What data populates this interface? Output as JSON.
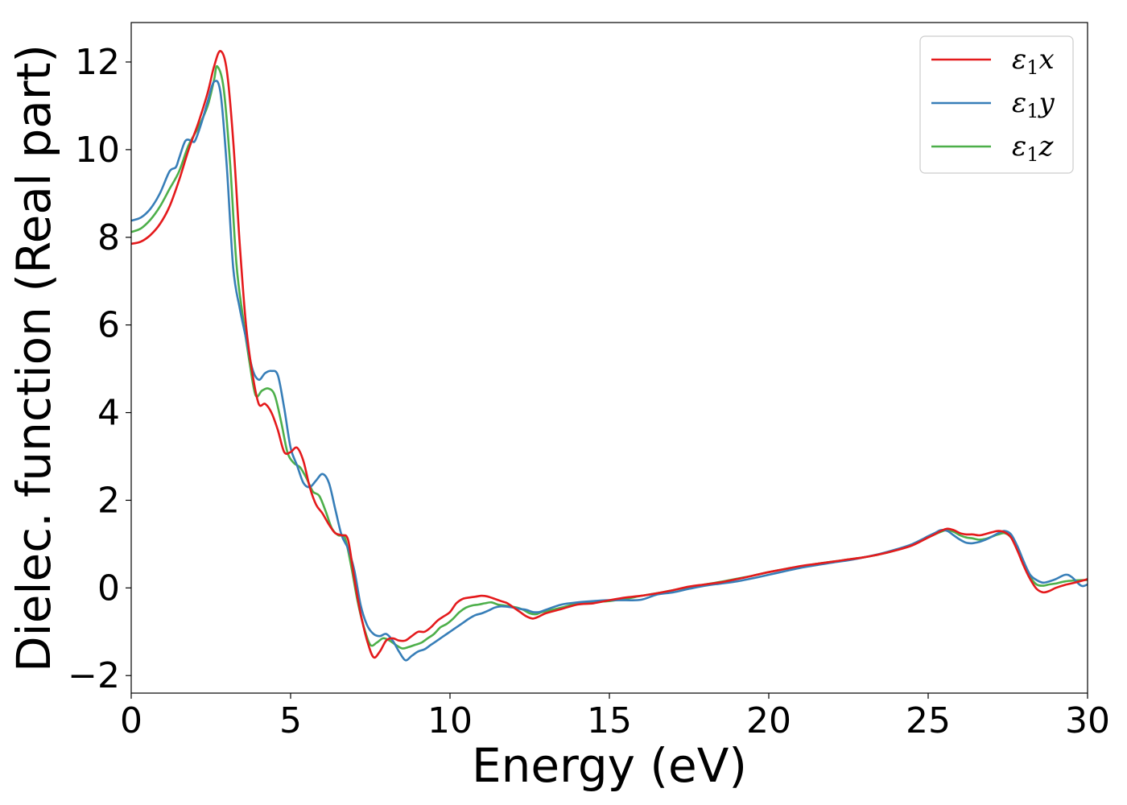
{
  "chart_data": {
    "type": "line",
    "xlabel": "Energy (eV)",
    "ylabel": "Dielec. function (Real part)",
    "xlim": [
      0,
      30
    ],
    "ylim": [
      -2.4,
      12.9
    ],
    "xticks": [
      0,
      5,
      10,
      15,
      20,
      25,
      30
    ],
    "yticks": [
      -2,
      0,
      2,
      4,
      6,
      8,
      10,
      12
    ],
    "grid": false,
    "legend_position": "top-right",
    "series": [
      {
        "name": "ε1x",
        "symbol": "ε",
        "sub": "1",
        "axis": "x",
        "color": "#e41a1c",
        "x": [
          0,
          0.3,
          0.6,
          0.9,
          1.2,
          1.5,
          1.8,
          2.1,
          2.4,
          2.6,
          2.8,
          3.0,
          3.2,
          3.4,
          3.6,
          3.8,
          4.0,
          4.2,
          4.4,
          4.6,
          4.8,
          5.0,
          5.2,
          5.4,
          5.6,
          5.8,
          6.0,
          6.2,
          6.4,
          6.6,
          6.8,
          7.0,
          7.2,
          7.4,
          7.6,
          7.8,
          8.0,
          8.2,
          8.4,
          8.6,
          8.8,
          9.0,
          9.2,
          9.4,
          9.6,
          9.8,
          10.0,
          10.2,
          10.4,
          10.6,
          10.8,
          11.0,
          11.2,
          11.4,
          11.6,
          11.8,
          12.0,
          12.2,
          12.4,
          12.6,
          12.8,
          13.0,
          13.5,
          14.0,
          14.5,
          15.0,
          15.5,
          16.0,
          16.5,
          17.0,
          17.5,
          18.0,
          18.5,
          19.0,
          19.5,
          20.0,
          20.5,
          21.0,
          21.5,
          22.0,
          22.5,
          23.0,
          23.5,
          24.0,
          24.5,
          25.0,
          25.2,
          25.4,
          25.6,
          25.8,
          26.0,
          26.2,
          26.4,
          26.6,
          26.8,
          27.0,
          27.2,
          27.4,
          27.6,
          27.8,
          28.0,
          28.2,
          28.4,
          28.6,
          28.8,
          29.0,
          29.3,
          29.6,
          30.0
        ],
        "y": [
          7.85,
          7.9,
          8.05,
          8.3,
          8.7,
          9.3,
          10.0,
          10.6,
          11.3,
          11.9,
          12.25,
          11.8,
          10.2,
          7.9,
          6.0,
          4.9,
          4.2,
          4.2,
          4.0,
          3.6,
          3.1,
          3.1,
          3.2,
          2.9,
          2.3,
          1.9,
          1.7,
          1.45,
          1.25,
          1.2,
          1.1,
          0.2,
          -0.6,
          -1.2,
          -1.58,
          -1.45,
          -1.2,
          -1.15,
          -1.2,
          -1.2,
          -1.1,
          -1.0,
          -1.0,
          -0.9,
          -0.75,
          -0.65,
          -0.55,
          -0.35,
          -0.25,
          -0.22,
          -0.2,
          -0.18,
          -0.2,
          -0.25,
          -0.3,
          -0.35,
          -0.45,
          -0.55,
          -0.65,
          -0.7,
          -0.65,
          -0.58,
          -0.48,
          -0.38,
          -0.35,
          -0.28,
          -0.22,
          -0.18,
          -0.12,
          -0.05,
          0.03,
          0.08,
          0.13,
          0.2,
          0.28,
          0.36,
          0.43,
          0.5,
          0.55,
          0.6,
          0.65,
          0.7,
          0.77,
          0.86,
          0.97,
          1.15,
          1.22,
          1.3,
          1.35,
          1.32,
          1.25,
          1.22,
          1.22,
          1.2,
          1.23,
          1.27,
          1.3,
          1.27,
          1.15,
          0.85,
          0.5,
          0.2,
          -0.02,
          -0.1,
          -0.07,
          0.0,
          0.07,
          0.12,
          0.2
        ]
      },
      {
        "name": "ε1y",
        "symbol": "ε",
        "sub": "1",
        "axis": "y",
        "color": "#377eb8",
        "x": [
          0,
          0.3,
          0.6,
          0.9,
          1.2,
          1.4,
          1.5,
          1.7,
          1.9,
          2.0,
          2.2,
          2.4,
          2.6,
          2.8,
          3.0,
          3.2,
          3.4,
          3.6,
          3.8,
          4.0,
          4.2,
          4.4,
          4.6,
          4.8,
          5.0,
          5.2,
          5.4,
          5.6,
          5.8,
          6.0,
          6.2,
          6.4,
          6.6,
          6.8,
          7.0,
          7.2,
          7.4,
          7.6,
          7.8,
          8.0,
          8.2,
          8.4,
          8.6,
          8.8,
          9.0,
          9.2,
          9.4,
          9.6,
          9.8,
          10.0,
          10.2,
          10.4,
          10.6,
          10.8,
          11.0,
          11.2,
          11.4,
          11.6,
          11.8,
          12.0,
          12.2,
          12.4,
          12.6,
          12.8,
          13.0,
          13.5,
          14.0,
          14.5,
          15.0,
          15.5,
          16.0,
          16.5,
          17.0,
          17.5,
          18.0,
          18.5,
          19.0,
          19.5,
          20.0,
          20.5,
          21.0,
          21.5,
          22.0,
          22.5,
          23.0,
          23.5,
          24.0,
          24.5,
          25.0,
          25.2,
          25.4,
          25.6,
          25.8,
          26.0,
          26.2,
          26.4,
          26.6,
          26.8,
          27.0,
          27.2,
          27.4,
          27.6,
          27.8,
          28.0,
          28.2,
          28.4,
          28.6,
          28.8,
          29.0,
          29.3,
          29.5,
          29.8,
          30.0
        ],
        "y": [
          8.38,
          8.45,
          8.65,
          9.0,
          9.5,
          9.6,
          9.8,
          10.2,
          10.2,
          10.2,
          10.6,
          11.1,
          11.55,
          11.3,
          9.6,
          7.3,
          6.4,
          5.7,
          5.0,
          4.75,
          4.9,
          4.95,
          4.85,
          4.1,
          3.2,
          2.8,
          2.4,
          2.3,
          2.45,
          2.6,
          2.4,
          1.8,
          1.2,
          0.9,
          0.4,
          -0.4,
          -0.85,
          -1.05,
          -1.1,
          -1.05,
          -1.2,
          -1.45,
          -1.65,
          -1.55,
          -1.45,
          -1.4,
          -1.3,
          -1.2,
          -1.1,
          -1.0,
          -0.9,
          -0.8,
          -0.7,
          -0.62,
          -0.58,
          -0.52,
          -0.45,
          -0.42,
          -0.43,
          -0.45,
          -0.48,
          -0.5,
          -0.55,
          -0.55,
          -0.5,
          -0.38,
          -0.33,
          -0.3,
          -0.28,
          -0.28,
          -0.27,
          -0.15,
          -0.1,
          -0.02,
          0.05,
          0.1,
          0.15,
          0.22,
          0.3,
          0.38,
          0.46,
          0.52,
          0.58,
          0.63,
          0.7,
          0.78,
          0.88,
          1.0,
          1.18,
          1.25,
          1.32,
          1.3,
          1.2,
          1.1,
          1.03,
          1.02,
          1.05,
          1.1,
          1.17,
          1.25,
          1.3,
          1.22,
          0.95,
          0.6,
          0.3,
          0.18,
          0.12,
          0.15,
          0.2,
          0.3,
          0.25,
          0.05,
          0.08
        ]
      },
      {
        "name": "ε1z",
        "symbol": "ε",
        "sub": "1",
        "axis": "z",
        "color": "#4daf4a",
        "x": [
          0,
          0.3,
          0.6,
          0.9,
          1.2,
          1.5,
          1.8,
          2.1,
          2.4,
          2.6,
          2.7,
          2.9,
          3.1,
          3.3,
          3.5,
          3.7,
          3.9,
          4.1,
          4.3,
          4.5,
          4.7,
          4.9,
          5.1,
          5.3,
          5.5,
          5.7,
          5.9,
          6.1,
          6.3,
          6.5,
          6.7,
          6.9,
          7.1,
          7.3,
          7.5,
          7.7,
          7.9,
          8.1,
          8.3,
          8.5,
          8.7,
          8.9,
          9.1,
          9.3,
          9.5,
          9.7,
          9.9,
          10.1,
          10.3,
          10.5,
          10.7,
          10.9,
          11.1,
          11.3,
          11.5,
          11.7,
          11.9,
          12.1,
          12.3,
          12.5,
          12.7,
          12.9,
          13.5,
          14.0,
          14.5,
          15.0,
          15.5,
          16.0,
          16.5,
          17.0,
          17.5,
          18.0,
          18.5,
          19.0,
          19.5,
          20.0,
          20.5,
          21.0,
          21.5,
          22.0,
          22.5,
          23.0,
          23.5,
          24.0,
          24.5,
          25.0,
          25.2,
          25.4,
          25.6,
          25.8,
          26.0,
          26.2,
          26.4,
          26.6,
          26.8,
          27.0,
          27.2,
          27.4,
          27.6,
          27.8,
          28.0,
          28.2,
          28.4,
          28.6,
          28.8,
          29.0,
          29.3,
          29.6,
          30.0
        ],
        "y": [
          8.12,
          8.2,
          8.4,
          8.7,
          9.1,
          9.5,
          10.1,
          10.5,
          11.0,
          11.6,
          11.9,
          11.4,
          9.7,
          7.4,
          6.2,
          5.2,
          4.4,
          4.5,
          4.55,
          4.4,
          3.8,
          3.1,
          2.85,
          2.75,
          2.5,
          2.2,
          2.1,
          1.75,
          1.35,
          1.2,
          1.15,
          0.5,
          -0.3,
          -0.9,
          -1.3,
          -1.25,
          -1.15,
          -1.2,
          -1.3,
          -1.38,
          -1.35,
          -1.3,
          -1.25,
          -1.15,
          -1.05,
          -0.9,
          -0.82,
          -0.7,
          -0.55,
          -0.45,
          -0.4,
          -0.38,
          -0.35,
          -0.33,
          -0.38,
          -0.4,
          -0.42,
          -0.45,
          -0.5,
          -0.58,
          -0.6,
          -0.55,
          -0.45,
          -0.35,
          -0.32,
          -0.3,
          -0.25,
          -0.18,
          -0.12,
          -0.05,
          0.02,
          0.08,
          0.14,
          0.21,
          0.28,
          0.36,
          0.43,
          0.49,
          0.55,
          0.6,
          0.65,
          0.7,
          0.77,
          0.86,
          0.98,
          1.15,
          1.22,
          1.28,
          1.32,
          1.28,
          1.2,
          1.15,
          1.13,
          1.1,
          1.12,
          1.17,
          1.22,
          1.25,
          1.15,
          0.88,
          0.55,
          0.25,
          0.08,
          0.05,
          0.08,
          0.1,
          0.15,
          0.17,
          0.18
        ]
      }
    ]
  }
}
